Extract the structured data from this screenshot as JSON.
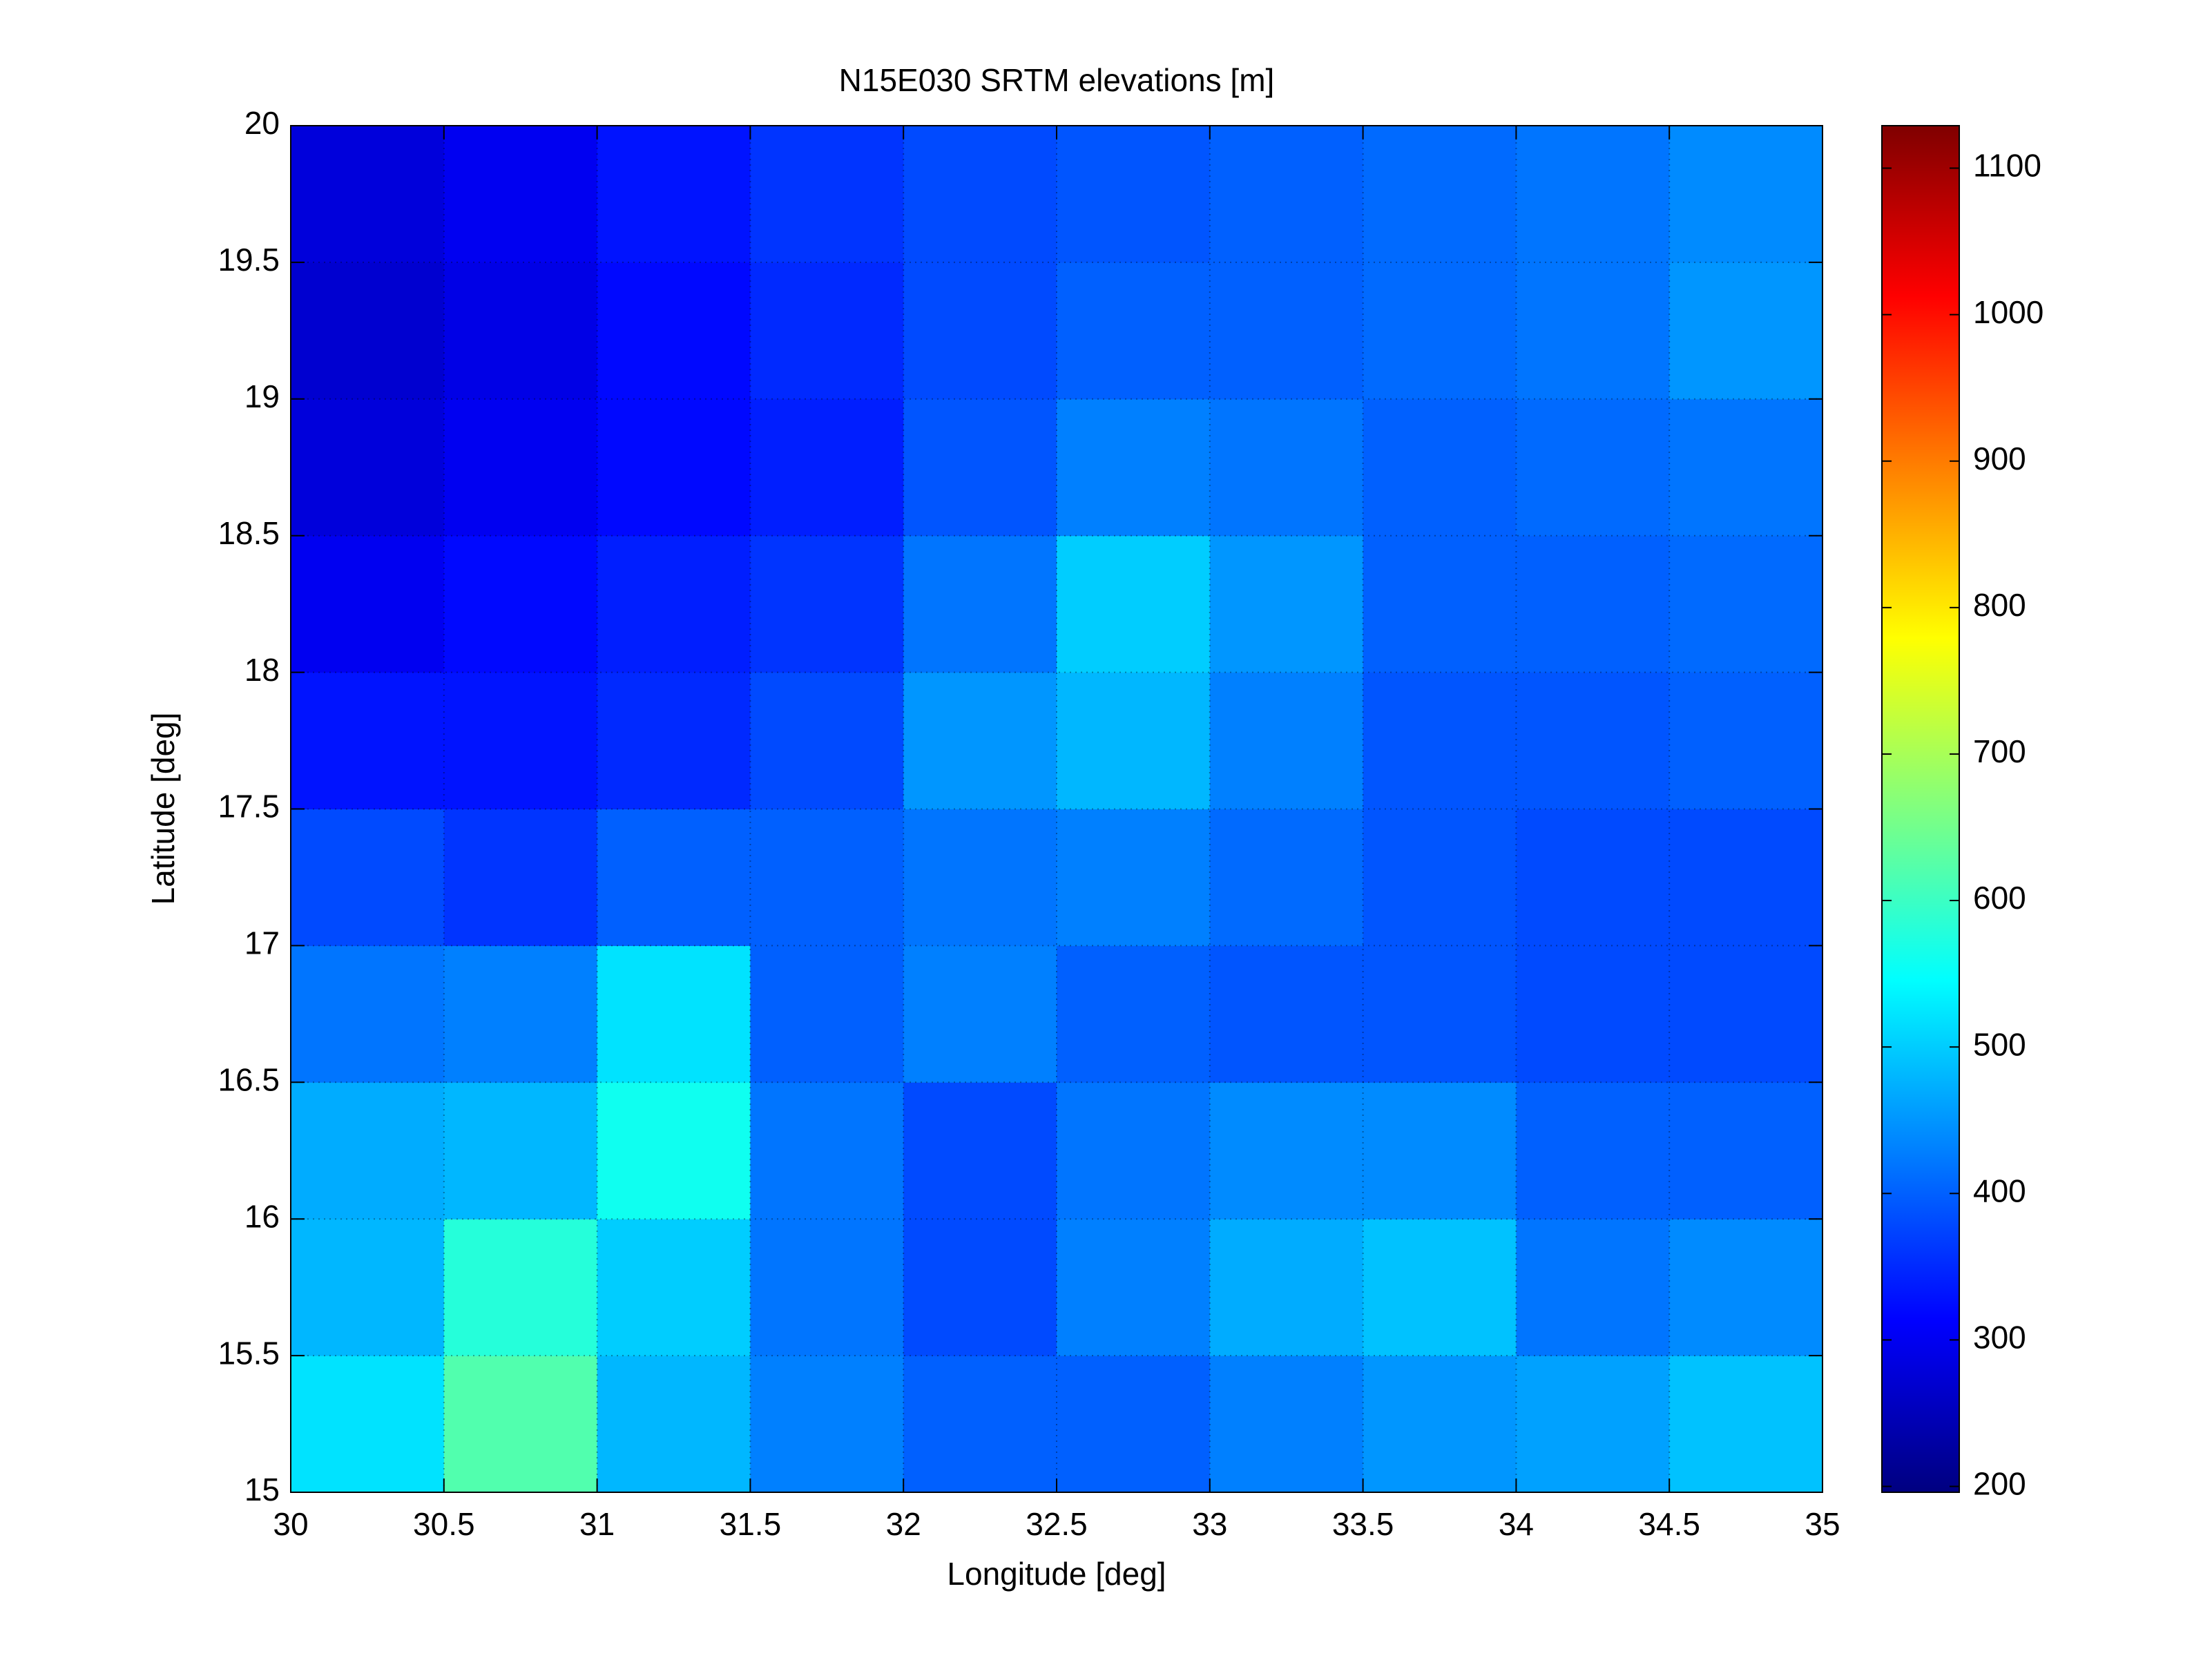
{
  "chart_data": {
    "type": "heatmap",
    "title": "N15E030 SRTM elevations [m]",
    "xlabel": "Longitude [deg]",
    "ylabel": "Latitude [deg]",
    "xlim": [
      30,
      35
    ],
    "ylim": [
      15,
      20
    ],
    "xticks": [
      30,
      30.5,
      31,
      31.5,
      32,
      32.5,
      33,
      33.5,
      34,
      34.5,
      35
    ],
    "yticks": [
      15,
      15.5,
      16,
      16.5,
      17,
      17.5,
      18,
      18.5,
      19,
      19.5,
      20
    ],
    "grid": true,
    "colormap": "jet",
    "clim": [
      196,
      1129
    ],
    "cticks": [
      200,
      300,
      400,
      500,
      600,
      700,
      800,
      900,
      1000,
      1100
    ],
    "z": [
      [
        520,
        620,
        480,
        430,
        400,
        400,
        430,
        450,
        460,
        490
      ],
      [
        480,
        580,
        500,
        420,
        380,
        430,
        470,
        490,
        420,
        440
      ],
      [
        470,
        480,
        560,
        420,
        380,
        420,
        440,
        440,
        400,
        400
      ],
      [
        420,
        430,
        520,
        400,
        430,
        400,
        390,
        390,
        380,
        380
      ],
      [
        380,
        360,
        400,
        400,
        420,
        430,
        410,
        390,
        380,
        380
      ],
      [
        330,
        330,
        350,
        380,
        450,
        480,
        430,
        390,
        390,
        400
      ],
      [
        300,
        320,
        340,
        360,
        420,
        500,
        450,
        400,
        400,
        410
      ],
      [
        280,
        300,
        320,
        340,
        390,
        430,
        420,
        400,
        410,
        420
      ],
      [
        270,
        290,
        320,
        350,
        380,
        400,
        400,
        410,
        420,
        450
      ],
      [
        280,
        300,
        330,
        360,
        380,
        390,
        400,
        410,
        420,
        440
      ]
    ]
  }
}
